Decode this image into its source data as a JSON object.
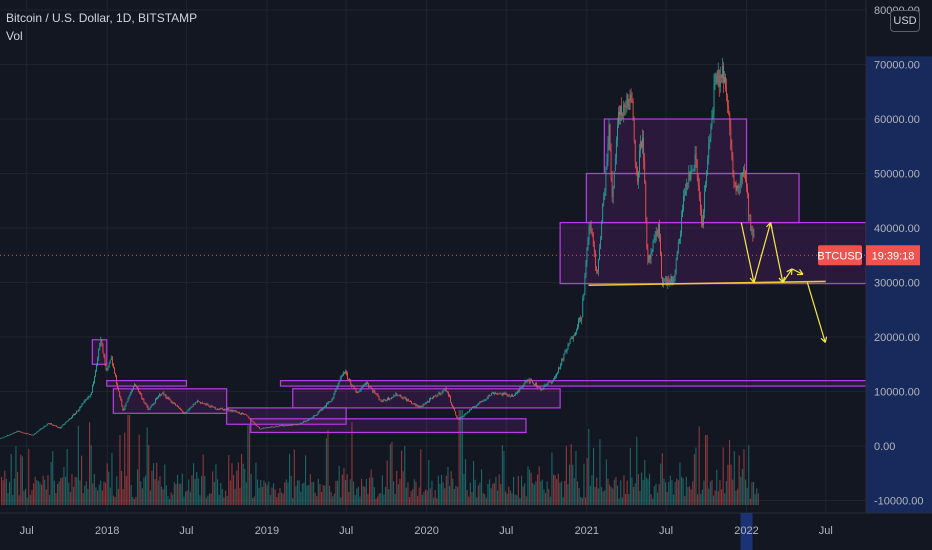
{
  "header": {
    "title": "Bitcoin / U.S. Dollar, 1D, BITSTAMP",
    "indicator": "Vol",
    "currency_button": "USD"
  },
  "price_label": {
    "symbol": "BTCUSD",
    "countdown": "19:39:18"
  },
  "colors": {
    "background": "#131722",
    "axis_text": "#b2b5be",
    "up": "#26a69a",
    "down": "#ef5350",
    "zone_stroke": "#b63fe6",
    "zone_fill": "#9c27b0",
    "arrow": "#f5e94a",
    "price_line": "#ef5350",
    "axis_highlight": "#1e3a8a"
  },
  "chart_data": {
    "type": "candlestick",
    "symbol": "BTCUSD",
    "interval": "1D",
    "exchange": "BITSTAMP",
    "ylim": [
      -10000,
      80000
    ],
    "y_ticks": [
      80000,
      70000,
      60000,
      50000,
      40000,
      30000,
      20000,
      10000,
      0,
      -10000
    ],
    "y_tick_labels": [
      "80000.00",
      "70000.00",
      "60000.00",
      "50000.00",
      "40000.00",
      "30000.00",
      "20000.00",
      "10000.00",
      "0.00",
      "-10000.00"
    ],
    "x_range": [
      "2017-05-01",
      "2022-10-01"
    ],
    "x_ticks": [
      {
        "date": "2017-07-01",
        "label": "Jul"
      },
      {
        "date": "2018-01-01",
        "label": "2018"
      },
      {
        "date": "2018-07-01",
        "label": "Jul"
      },
      {
        "date": "2019-01-01",
        "label": "2019"
      },
      {
        "date": "2019-07-01",
        "label": "Jul"
      },
      {
        "date": "2020-01-01",
        "label": "2020"
      },
      {
        "date": "2020-07-01",
        "label": "Jul"
      },
      {
        "date": "2021-01-01",
        "label": "2021"
      },
      {
        "date": "2021-07-01",
        "label": "Jul"
      },
      {
        "date": "2022-01-01",
        "label": "2022"
      },
      {
        "date": "2022-07-01",
        "label": "Jul"
      }
    ],
    "highlighted_x_tick": "2022-01-01",
    "last_price": 35000,
    "price_path": [
      [
        "2017-05-01",
        1400
      ],
      [
        "2017-06-10",
        2700
      ],
      [
        "2017-07-15",
        2000
      ],
      [
        "2017-08-20",
        4200
      ],
      [
        "2017-09-15",
        3300
      ],
      [
        "2017-10-20",
        6000
      ],
      [
        "2017-11-25",
        9500
      ],
      [
        "2017-12-17",
        19500
      ],
      [
        "2017-12-30",
        13500
      ],
      [
        "2018-01-10",
        16000
      ],
      [
        "2018-02-06",
        6500
      ],
      [
        "2018-03-05",
        11500
      ],
      [
        "2018-04-05",
        6600
      ],
      [
        "2018-05-05",
        9800
      ],
      [
        "2018-06-28",
        5900
      ],
      [
        "2018-07-25",
        8300
      ],
      [
        "2018-09-01",
        7000
      ],
      [
        "2018-10-15",
        6500
      ],
      [
        "2018-11-15",
        5600
      ],
      [
        "2018-12-15",
        3200
      ],
      [
        "2019-01-15",
        3600
      ],
      [
        "2019-03-15",
        4000
      ],
      [
        "2019-04-15",
        5200
      ],
      [
        "2019-05-30",
        8600
      ],
      [
        "2019-06-26",
        13800
      ],
      [
        "2019-07-25",
        9600
      ],
      [
        "2019-08-15",
        11800
      ],
      [
        "2019-09-20",
        8200
      ],
      [
        "2019-10-26",
        9500
      ],
      [
        "2019-12-15",
        7100
      ],
      [
        "2020-02-14",
        10500
      ],
      [
        "2020-03-12",
        4800
      ],
      [
        "2020-04-15",
        7000
      ],
      [
        "2020-06-01",
        9800
      ],
      [
        "2020-07-20",
        9200
      ],
      [
        "2020-08-17",
        12300
      ],
      [
        "2020-09-20",
        10500
      ],
      [
        "2020-10-20",
        12500
      ],
      [
        "2020-11-20",
        18500
      ],
      [
        "2020-12-20",
        24000
      ],
      [
        "2021-01-08",
        41500
      ],
      [
        "2021-01-25",
        31000
      ],
      [
        "2021-02-21",
        58000
      ],
      [
        "2021-02-28",
        45000
      ],
      [
        "2021-03-13",
        61000
      ],
      [
        "2021-04-14",
        64000
      ],
      [
        "2021-04-25",
        49000
      ],
      [
        "2021-05-09",
        58000
      ],
      [
        "2021-05-19",
        33000
      ],
      [
        "2021-06-15",
        40000
      ],
      [
        "2021-06-22",
        30000
      ],
      [
        "2021-07-20",
        30500
      ],
      [
        "2021-08-14",
        47500
      ],
      [
        "2021-09-07",
        52500
      ],
      [
        "2021-09-21",
        40500
      ],
      [
        "2021-10-20",
        66000
      ],
      [
        "2021-11-10",
        68700
      ],
      [
        "2021-11-28",
        54000
      ],
      [
        "2021-12-04",
        47000
      ],
      [
        "2021-12-27",
        51000
      ],
      [
        "2022-01-10",
        40000
      ],
      [
        "2022-01-18",
        38000
      ]
    ],
    "drawings": {
      "zones": [
        {
          "x0": "2017-11-28",
          "x1": "2017-12-31",
          "y0": 15000,
          "y1": 19500
        },
        {
          "x0": "2017-12-31",
          "x1": "2018-07-01",
          "y0": 11000,
          "y1": 12000
        },
        {
          "x0": "2018-01-15",
          "x1": "2018-10-01",
          "y0": 6000,
          "y1": 10500
        },
        {
          "x0": "2018-10-01",
          "x1": "2019-07-01",
          "y0": 4000,
          "y1": 7000
        },
        {
          "x0": "2018-11-25",
          "x1": "2020-08-15",
          "y0": 2500,
          "y1": 5000
        },
        {
          "x0": "2019-02-01",
          "x1": "2022-11-30",
          "y0": 11000,
          "y1": 12000
        },
        {
          "x0": "2019-03-01",
          "x1": "2020-11-01",
          "y0": 7000,
          "y1": 10500
        },
        {
          "x0": "2020-11-01",
          "x1": "2022-10-01",
          "y0": 29800,
          "y1": 41000
        },
        {
          "x0": "2020-12-31",
          "x1": "2022-05-01",
          "y0": 41000,
          "y1": 50000
        },
        {
          "x0": "2021-02-10",
          "x1": "2022-01-01",
          "y0": 50000,
          "y1": 60000
        }
      ],
      "support_line": {
        "x0": "2021-01-05",
        "x1": "2022-07-01",
        "y0": 29500,
        "y1": 30200
      },
      "arrows": [
        [
          [
            "2021-12-20",
            41000
          ],
          [
            "2022-01-18",
            30000
          ]
        ],
        [
          [
            "2022-01-18",
            30000
          ],
          [
            "2022-02-25",
            41000
          ]
        ],
        [
          [
            "2022-02-25",
            41000
          ],
          [
            "2022-03-25",
            30000
          ]
        ],
        [
          [
            "2022-03-25",
            30000
          ],
          [
            "2022-04-15",
            32500
          ]
        ],
        [
          [
            "2022-04-15",
            32500
          ],
          [
            "2022-05-10",
            31500
          ]
        ],
        [
          [
            "2022-05-20",
            30000
          ],
          [
            "2022-06-30",
            19000
          ]
        ]
      ]
    }
  }
}
